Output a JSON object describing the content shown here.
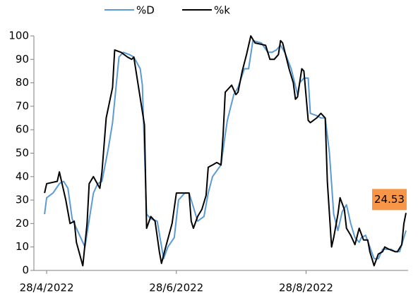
{
  "chart_data": {
    "type": "line",
    "annotation": "24.53",
    "annotation_color": "#f79646",
    "xlim": [
      -5,
      171
    ],
    "xticks": [
      {
        "value": 1,
        "label": "28/4/2022"
      },
      {
        "value": 62,
        "label": "28/6/2022"
      },
      {
        "value": 123,
        "label": "28/8/2022"
      }
    ],
    "ylim": [
      0,
      100
    ],
    "yticks": [
      0,
      10,
      20,
      30,
      40,
      50,
      60,
      70,
      80,
      90,
      100
    ],
    "grid": false,
    "legend": "top",
    "series": [
      {
        "name": "%D",
        "color": "#5b9bd5",
        "x": [
          0,
          1,
          4,
          7,
          9,
          11,
          13,
          16,
          19,
          23,
          25,
          27,
          30,
          32,
          35,
          37,
          40,
          42,
          45,
          46,
          48,
          50,
          53,
          56,
          58,
          61,
          63,
          66,
          68,
          70,
          72,
          75,
          77,
          79,
          83,
          85,
          86,
          89,
          91,
          94,
          96,
          98,
          102,
          105,
          107,
          109,
          111,
          113,
          116,
          119,
          120,
          122,
          124,
          125,
          128,
          130,
          132,
          134,
          136,
          138,
          140,
          142,
          144,
          146,
          148,
          149,
          151,
          153,
          155,
          157,
          159,
          161,
          163,
          165,
          167,
          168,
          170
        ],
        "values": [
          24,
          31,
          33,
          37,
          38,
          35,
          22,
          16,
          10,
          33,
          37,
          38,
          52,
          63,
          91,
          93,
          92,
          91,
          86,
          79,
          24,
          22,
          21,
          5,
          10,
          14,
          30,
          33,
          33,
          27,
          21,
          23,
          33,
          40,
          45,
          58,
          64,
          75,
          78,
          86,
          86,
          98,
          97,
          93,
          93,
          94,
          96,
          93,
          86,
          75,
          80,
          82,
          82,
          67,
          66,
          65,
          65,
          50,
          24,
          17,
          25,
          28,
          20,
          14,
          12,
          14,
          15,
          10,
          5,
          5,
          9,
          9,
          9,
          8,
          8,
          11,
          17
        ]
      },
      {
        "name": "%k",
        "color": "#000000",
        "x": [
          0,
          1,
          6,
          7,
          10,
          12,
          14,
          15,
          18,
          20,
          21,
          23,
          26,
          27,
          29,
          32,
          33,
          36,
          39,
          41,
          42,
          47,
          48,
          50,
          52,
          54,
          55,
          57,
          60,
          62,
          64,
          68,
          69,
          70,
          72,
          74,
          76,
          77,
          79,
          81,
          83,
          84,
          85,
          88,
          90,
          91,
          93,
          95,
          97,
          99,
          104,
          106,
          108,
          110,
          111,
          112,
          115,
          117,
          118,
          119,
          121,
          122,
          124,
          125,
          128,
          130,
          132,
          133,
          135,
          136,
          138,
          139,
          141,
          142,
          144,
          146,
          148,
          150,
          152,
          153,
          155,
          157,
          159,
          160,
          162,
          165,
          166,
          168,
          169,
          170
        ],
        "values": [
          33,
          37,
          38,
          42,
          30,
          20,
          21,
          12,
          2,
          20,
          37,
          40,
          35,
          42,
          65,
          78,
          94,
          93,
          91,
          90,
          91,
          62,
          18,
          23,
          21,
          8,
          3,
          10,
          20,
          33,
          33,
          33,
          21,
          18,
          23,
          26,
          32,
          44,
          45,
          46,
          45,
          58,
          76,
          79,
          75,
          76,
          85,
          92,
          100,
          97,
          96,
          90,
          90,
          92,
          98,
          97,
          86,
          80,
          73,
          74,
          86,
          85,
          64,
          63,
          65,
          67,
          65,
          38,
          10,
          14,
          24,
          31,
          26,
          18,
          15,
          11,
          18,
          13,
          13,
          8,
          2,
          7,
          8,
          10,
          9,
          8,
          8,
          11,
          20,
          24.53
        ]
      }
    ]
  }
}
